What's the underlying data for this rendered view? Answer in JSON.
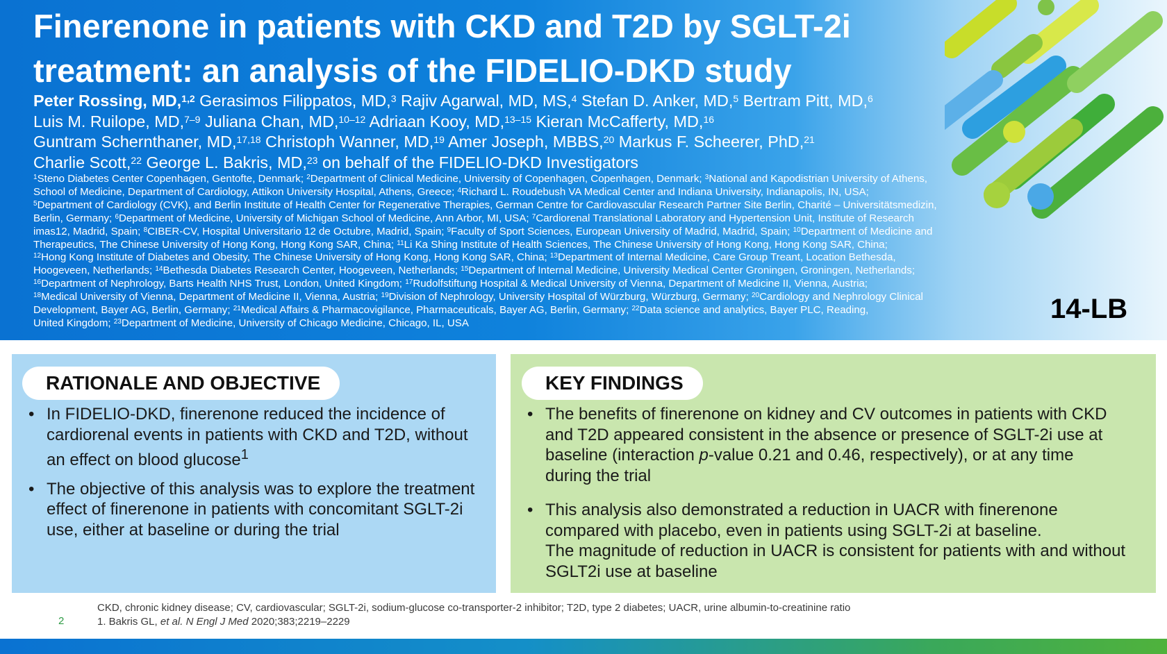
{
  "header": {
    "title_line1": "Finerenone in patients with CKD and T2D by SGLT-2i",
    "title_line2": "treatment: an analysis of the FIDELIO-DKD study",
    "authors": [
      [
        {
          "text": "Peter Rossing, MD,",
          "bold": true
        },
        {
          "sup": "1,2",
          "bold": true
        },
        {
          "text": " Gerasimos Filippatos, MD,"
        },
        {
          "sup": "3"
        },
        {
          "text": " Rajiv Agarwal, MD, MS,"
        },
        {
          "sup": "4"
        },
        {
          "text": " Stefan D. Anker, MD,"
        },
        {
          "sup": "5"
        },
        {
          "text": " Bertram Pitt, MD,"
        },
        {
          "sup": "6"
        }
      ],
      [
        {
          "text": "Luis M. Ruilope, MD,"
        },
        {
          "sup": "7–9"
        },
        {
          "text": " Juliana Chan, MD,"
        },
        {
          "sup": "10–12"
        },
        {
          "text": " Adriaan Kooy, MD,"
        },
        {
          "sup": "13–15"
        },
        {
          "text": " Kieran McCafferty, MD,"
        },
        {
          "sup": "16"
        }
      ],
      [
        {
          "text": "Guntram Schernthaner, MD,"
        },
        {
          "sup": "17,18"
        },
        {
          "text": " Christoph Wanner, MD,"
        },
        {
          "sup": "19"
        },
        {
          "text": " Amer Joseph, MBBS,"
        },
        {
          "sup": "20"
        },
        {
          "text": " Markus F. Scheerer, PhD,"
        },
        {
          "sup": "21"
        }
      ],
      [
        {
          "text": "Charlie Scott,"
        },
        {
          "sup": "22"
        },
        {
          "text": " George L. Bakris, MD,"
        },
        {
          "sup": "23"
        },
        {
          "text": " on behalf of the FIDELIO-DKD Investigators"
        }
      ]
    ],
    "affiliations": [
      [
        {
          "sup": "1"
        },
        {
          "text": "Steno Diabetes Center Copenhagen, Gentofte, Denmark; "
        },
        {
          "sup": "2"
        },
        {
          "text": "Department of Clinical Medicine, University of Copenhagen, Copenhagen, Denmark; "
        },
        {
          "sup": "3"
        },
        {
          "text": "National and Kapodistrian University of Athens,"
        }
      ],
      [
        {
          "text": "School of Medicine, Department of Cardiology, Attikon University Hospital, Athens, Greece; "
        },
        {
          "sup": "4"
        },
        {
          "text": "Richard L. Roudebush VA Medical Center and Indiana University, Indianapolis, IN, USA;"
        }
      ],
      [
        {
          "sup": "5"
        },
        {
          "text": "Department of Cardiology (CVK), and Berlin Institute of Health Center for Regenerative Therapies, German Centre for Cardiovascular Research Partner Site Berlin, Charité – Universitätsmedizin,"
        }
      ],
      [
        {
          "text": "Berlin, Germany; "
        },
        {
          "sup": "6"
        },
        {
          "text": "Department of Medicine, University of Michigan School of Medicine, Ann Arbor, MI, USA; "
        },
        {
          "sup": "7"
        },
        {
          "text": "Cardiorenal Translational Laboratory and Hypertension Unit, Institute of Research"
        }
      ],
      [
        {
          "text": "imas12, Madrid, Spain; "
        },
        {
          "sup": "8"
        },
        {
          "text": "CIBER-CV, Hospital Universitario 12 de Octubre, Madrid, Spain; "
        },
        {
          "sup": "9"
        },
        {
          "text": "Faculty of Sport Sciences, European University of Madrid, Madrid, Spain; "
        },
        {
          "sup": "10"
        },
        {
          "text": "Department of Medicine and"
        }
      ],
      [
        {
          "text": "Therapeutics, The Chinese University of Hong Kong, Hong Kong SAR, China; "
        },
        {
          "sup": "11"
        },
        {
          "text": "Li Ka Shing Institute of Health Sciences, The Chinese University of Hong Kong, Hong Kong SAR, China;"
        }
      ],
      [
        {
          "sup": "12"
        },
        {
          "text": "Hong Kong Institute of Diabetes and Obesity, The Chinese University of Hong Kong, Hong Kong SAR, China; "
        },
        {
          "sup": "13"
        },
        {
          "text": "Department of Internal Medicine, Care Group Treant, Location Bethesda,"
        }
      ],
      [
        {
          "text": "Hoogeveen, Netherlands; "
        },
        {
          "sup": "14"
        },
        {
          "text": "Bethesda Diabetes Research Center, Hoogeveen, Netherlands; "
        },
        {
          "sup": "15"
        },
        {
          "text": "Department of Internal Medicine, University Medical Center Groningen, Groningen, Netherlands;"
        }
      ],
      [
        {
          "sup": "16"
        },
        {
          "text": "Department of Nephrology, Barts Health NHS Trust, London, United Kingdom; "
        },
        {
          "sup": "17"
        },
        {
          "text": "Rudolfstiftung Hospital & Medical University of Vienna, Department of Medicine II, Vienna, Austria;"
        }
      ],
      [
        {
          "sup": "18"
        },
        {
          "text": "Medical University of Vienna, Department of Medicine II, Vienna, Austria; "
        },
        {
          "sup": "19"
        },
        {
          "text": "Division of Nephrology, University Hospital of Würzburg, Würzburg, Germany; "
        },
        {
          "sup": "20"
        },
        {
          "text": "Cardiology and Nephrology Clinical"
        }
      ],
      [
        {
          "text": "Development, Bayer AG, Berlin, Germany; "
        },
        {
          "sup": "21"
        },
        {
          "text": "Medical Affairs & Pharmacovigilance, Pharmaceuticals, Bayer AG, Berlin, Germany; "
        },
        {
          "sup": "22"
        },
        {
          "text": "Data science and analytics, Bayer PLC, Reading,"
        }
      ],
      [
        {
          "text": "United Kingdom; "
        },
        {
          "sup": "23"
        },
        {
          "text": "Department of Medicine, University of Chicago Medicine, Chicago, IL, USA"
        }
      ]
    ],
    "poster_code": "14-LB"
  },
  "rationale": {
    "heading": "RATIONALE AND OBJECTIVE",
    "bullet_symbol": "•",
    "bullets": [
      [
        {
          "text": "In FIDELIO-DKD, finerenone reduced the incidence of"
        },
        {
          "br": true
        },
        {
          "text": "cardiorenal events in patients with CKD and T2D, without"
        },
        {
          "br": true
        },
        {
          "text": "an effect on blood glucose"
        },
        {
          "sup": "1"
        }
      ],
      [
        {
          "text": "The objective of this analysis was to explore the treatment"
        },
        {
          "br": true
        },
        {
          "text": "effect of finerenone in patients with concomitant SGLT-2i"
        },
        {
          "br": true
        },
        {
          "text": "use, either at baseline or during the trial"
        }
      ]
    ]
  },
  "findings": {
    "heading": "KEY FINDINGS",
    "bullet_symbol": "•",
    "bullets": [
      [
        {
          "text": "The benefits of finerenone on kidney and CV outcomes in patients with CKD"
        },
        {
          "br": true
        },
        {
          "text": "and T2D appeared consistent in the absence or presence of SGLT-2i use at"
        },
        {
          "br": true
        },
        {
          "text": "baseline (interaction "
        },
        {
          "text": "p",
          "italic": true
        },
        {
          "text": "-value 0.21 and 0.46, respectively), or at any time"
        },
        {
          "br": true
        },
        {
          "text": "during the trial"
        }
      ],
      [
        {
          "text": "This analysis also demonstrated a reduction in UACR with finerenone"
        },
        {
          "br": true
        },
        {
          "text": "compared with placebo, even in patients using SGLT-2i at baseline."
        },
        {
          "br": true
        },
        {
          "text": "The magnitude of reduction in UACR is consistent for patients with and without"
        },
        {
          "br": true
        },
        {
          "text": "SGLT2i use at baseline"
        }
      ]
    ]
  },
  "footer": {
    "page_number": "2",
    "abbreviations": "CKD, chronic kidney disease; CV, cardiovascular; SGLT-2i, sodium-glucose co-transporter-2 inhibitor; T2D, type 2 diabetes; UACR, urine albumin-to-creatinine ratio",
    "reference": [
      {
        "text": "1. Bakris GL, "
      },
      {
        "text": "et al.",
        "italic": true
      },
      {
        "text": " "
      },
      {
        "text": "N Engl J Med",
        "italic": true
      },
      {
        "text": " 2020;383;2219–2229"
      }
    ]
  },
  "colors": {
    "header_blue": "#0a72d2",
    "rationale_panel": "#acd8f4",
    "findings_panel": "#c9e6ae",
    "accent_green": "#2e9b45"
  }
}
